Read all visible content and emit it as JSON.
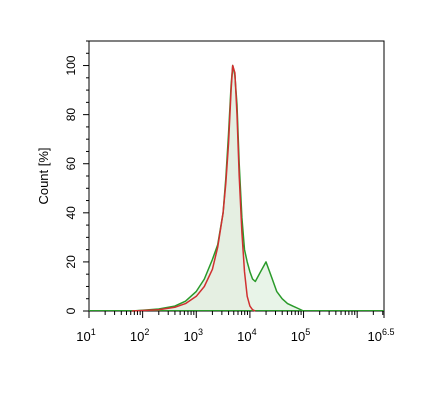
{
  "chart_data": {
    "type": "area",
    "title": "",
    "xlabel": "",
    "ylabel": "Count [%]",
    "xscale": "log10",
    "xlim_log10": [
      1,
      6.5
    ],
    "ylim": [
      0,
      110
    ],
    "grid": false,
    "legend": "none",
    "x_ticks": [
      {
        "label": "10",
        "exp": "1",
        "log10": 1
      },
      {
        "label": "10",
        "exp": "2",
        "log10": 2
      },
      {
        "label": "10",
        "exp": "3",
        "log10": 3
      },
      {
        "label": "10",
        "exp": "4",
        "log10": 4
      },
      {
        "label": "10",
        "exp": "5",
        "log10": 5
      },
      {
        "label": "10",
        "exp": "6.5",
        "log10": 6.5
      }
    ],
    "y_ticks": [
      0,
      20,
      40,
      60,
      80,
      100
    ],
    "series": [
      {
        "color": "#d03030",
        "fill": "#eaddd5",
        "points_log10x_y": [
          [
            1.8,
            0
          ],
          [
            2.0,
            0.2
          ],
          [
            2.3,
            0.5
          ],
          [
            2.6,
            1.5
          ],
          [
            2.8,
            3
          ],
          [
            3.0,
            6
          ],
          [
            3.15,
            10
          ],
          [
            3.3,
            17
          ],
          [
            3.4,
            26
          ],
          [
            3.5,
            40
          ],
          [
            3.55,
            52
          ],
          [
            3.6,
            68
          ],
          [
            3.65,
            90
          ],
          [
            3.68,
            100
          ],
          [
            3.72,
            97
          ],
          [
            3.76,
            80
          ],
          [
            3.8,
            55
          ],
          [
            3.85,
            32
          ],
          [
            3.9,
            16
          ],
          [
            3.95,
            6
          ],
          [
            4.0,
            2
          ],
          [
            4.05,
            0.5
          ],
          [
            4.1,
            0
          ]
        ]
      },
      {
        "color": "#2a9a2a",
        "fill": "#e4f2e4",
        "points_log10x_y": [
          [
            1.8,
            0
          ],
          [
            2.0,
            0.3
          ],
          [
            2.3,
            0.8
          ],
          [
            2.6,
            2
          ],
          [
            2.8,
            4
          ],
          [
            3.0,
            8
          ],
          [
            3.15,
            13
          ],
          [
            3.3,
            21
          ],
          [
            3.4,
            27
          ],
          [
            3.5,
            40
          ],
          [
            3.55,
            54
          ],
          [
            3.6,
            72
          ],
          [
            3.65,
            92
          ],
          [
            3.68,
            100
          ],
          [
            3.72,
            96
          ],
          [
            3.76,
            84
          ],
          [
            3.8,
            60
          ],
          [
            3.85,
            38
          ],
          [
            3.9,
            25
          ],
          [
            3.95,
            20
          ],
          [
            4.0,
            16
          ],
          [
            4.05,
            13
          ],
          [
            4.1,
            12
          ],
          [
            4.2,
            16
          ],
          [
            4.3,
            20
          ],
          [
            4.4,
            14
          ],
          [
            4.5,
            8
          ],
          [
            4.6,
            5
          ],
          [
            4.7,
            3
          ],
          [
            4.8,
            2
          ],
          [
            4.9,
            1
          ],
          [
            5.0,
            0
          ]
        ]
      }
    ]
  }
}
